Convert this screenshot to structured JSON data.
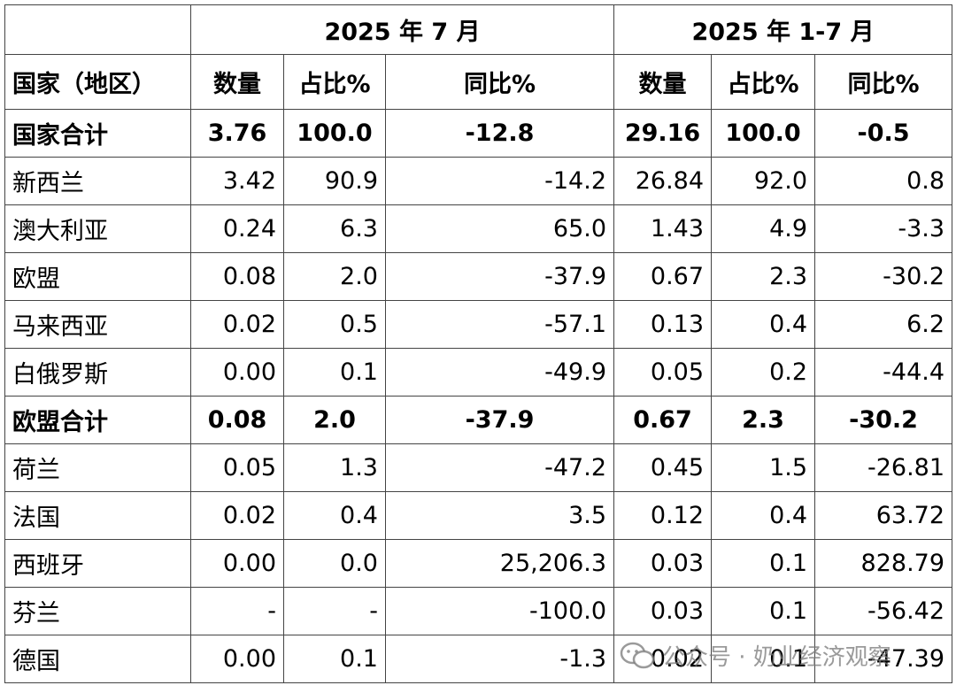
{
  "table": {
    "header_groups": [
      "2025 年 7 月",
      "2025 年 1-7 月"
    ],
    "columns": [
      "国家（地区）",
      "数量",
      "占比%",
      "同比%",
      "数量",
      "占比%",
      "同比%"
    ],
    "rows": [
      {
        "bold": true,
        "cells": [
          "国家合计",
          "3.76",
          "100.0",
          "-12.8",
          "29.16",
          "100.0",
          "-0.5"
        ]
      },
      {
        "cells": [
          "新西兰",
          "3.42",
          "90.9",
          "-14.2",
          "26.84",
          "92.0",
          "0.8"
        ]
      },
      {
        "cells": [
          "澳大利亚",
          "0.24",
          "6.3",
          "65.0",
          "1.43",
          "4.9",
          "-3.3"
        ]
      },
      {
        "cells": [
          "欧盟",
          "0.08",
          "2.0",
          "-37.9",
          "0.67",
          "2.3",
          "-30.2"
        ]
      },
      {
        "cells": [
          "马来西亚",
          "0.02",
          "0.5",
          "-57.1",
          "0.13",
          "0.4",
          "6.2"
        ]
      },
      {
        "cells": [
          "白俄罗斯",
          "0.00",
          "0.1",
          "-49.9",
          "0.05",
          "0.2",
          "-44.4"
        ]
      },
      {
        "bold": true,
        "cells": [
          "欧盟合计",
          "0.08",
          "2.0",
          "-37.9",
          "0.67",
          "2.3",
          "-30.2"
        ]
      },
      {
        "cells": [
          "荷兰",
          "0.05",
          "1.3",
          "-47.2",
          "0.45",
          "1.5",
          "-26.81"
        ]
      },
      {
        "cells": [
          "法国",
          "0.02",
          "0.4",
          "3.5",
          "0.12",
          "0.4",
          "63.72"
        ]
      },
      {
        "cells": [
          "西班牙",
          "0.00",
          "0.0",
          "25,206.3",
          "0.03",
          "0.1",
          "828.79"
        ]
      },
      {
        "cells": [
          "芬兰",
          "-",
          "-",
          "-100.0",
          "0.03",
          "0.1",
          "-56.42"
        ]
      },
      {
        "cells": [
          "德国",
          "0.00",
          "0.1",
          "-1.3",
          "0.02",
          "0.1",
          "-47.39"
        ]
      }
    ]
  },
  "watermark": "公众号 · 奶业经济观察"
}
